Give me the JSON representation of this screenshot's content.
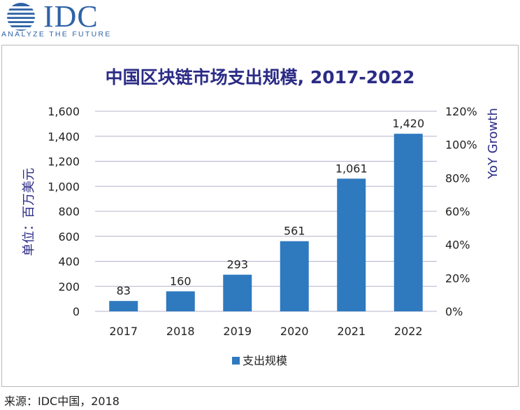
{
  "logo": {
    "text": "IDC",
    "tagline": "ANALYZE THE FUTURE"
  },
  "source": "来源：IDC中国，2018",
  "colors": {
    "bar": "#2f79bf",
    "title": "#2b2b86",
    "axis_label": "#2b2b86",
    "grid": "#b4b4cc",
    "brand": "#2f63a6"
  },
  "chart_data": {
    "type": "bar",
    "title": "中国区块链市场支出规模, 2017-2022",
    "categories": [
      "2017",
      "2018",
      "2019",
      "2020",
      "2021",
      "2022"
    ],
    "series": [
      {
        "name": "支出规模",
        "values": [
          83,
          160,
          293,
          561,
          1061,
          1420
        ]
      }
    ],
    "data_labels": [
      "83",
      "160",
      "293",
      "561",
      "1,061",
      "1,420"
    ],
    "ylabel": "单位：百万美元",
    "ylim": [
      0,
      1600
    ],
    "y_ticks": [
      "0",
      "200",
      "400",
      "600",
      "800",
      "1,000",
      "1,200",
      "1,400",
      "1,600"
    ],
    "y2label": "YoY Growth",
    "y2lim": [
      0,
      1.2
    ],
    "y2_ticks": [
      "0%",
      "20%",
      "40%",
      "60%",
      "80%",
      "100%",
      "120%"
    ],
    "grid": true,
    "legend": "bottom-center"
  }
}
